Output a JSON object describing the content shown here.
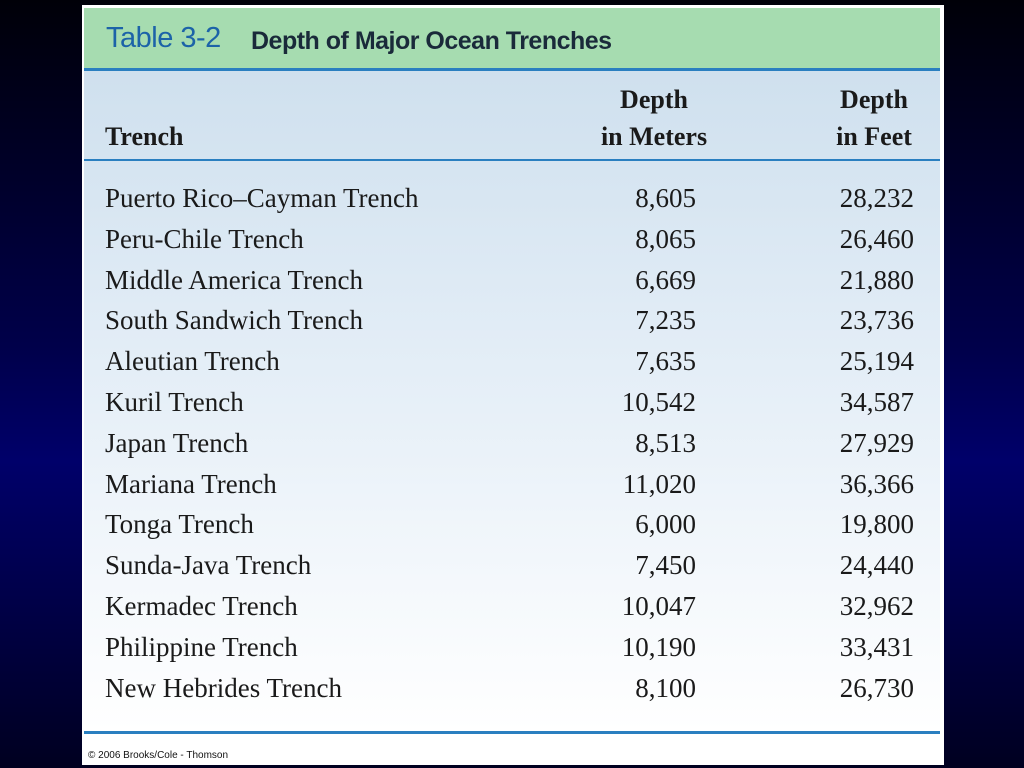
{
  "table": {
    "label": "Table 3-2",
    "title": "Depth of Major Ocean Trenches",
    "headers": [
      [
        "Trench"
      ],
      [
        "Depth",
        "in Meters"
      ],
      [
        "Depth",
        "in Feet"
      ]
    ],
    "rows": [
      [
        "Puerto Rico–Cayman Trench",
        "8,605",
        "28,232"
      ],
      [
        "Peru-Chile Trench",
        "8,065",
        "26,460"
      ],
      [
        "Middle America Trench",
        "6,669",
        "21,880"
      ],
      [
        "South Sandwich Trench",
        "7,235",
        "23,736"
      ],
      [
        "Aleutian Trench",
        "7,635",
        "25,194"
      ],
      [
        "Kuril Trench",
        "10,542",
        "34,587"
      ],
      [
        "Japan Trench",
        "8,513",
        "27,929"
      ],
      [
        "Mariana Trench",
        "11,020",
        "36,366"
      ],
      [
        "Tonga Trench",
        "6,000",
        "19,800"
      ],
      [
        "Sunda-Java Trench",
        "7,450",
        "24,440"
      ],
      [
        "Kermadec Trench",
        "10,047",
        "32,962"
      ],
      [
        "Philippine Trench",
        "10,190",
        "33,431"
      ],
      [
        "New Hebrides Trench",
        "8,100",
        "26,730"
      ]
    ],
    "credit": "© 2006 Brooks/Cole - Thomson"
  }
}
